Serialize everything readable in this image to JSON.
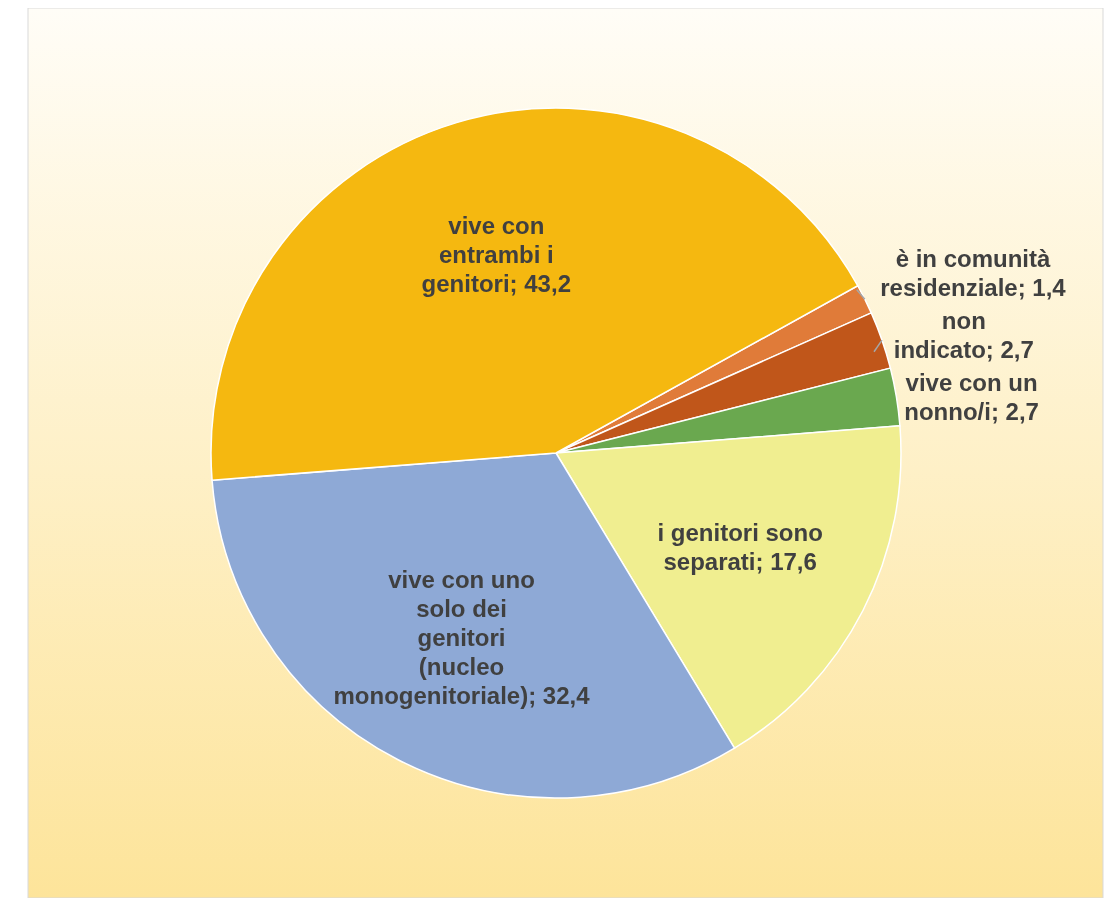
{
  "chart_data": {
    "type": "pie",
    "categories": [
      "è in comunità residenziale",
      "non indicato",
      "vive con un nonno/i",
      "i genitori sono separati",
      "vive con uno solo dei genitori (nucleo monogenitoriale)",
      "vive con entrambi i genitori"
    ],
    "values": [
      1.4,
      2.7,
      2.7,
      17.6,
      32.4,
      43.2
    ],
    "value_labels": [
      "1,4",
      "2,7",
      "2,7",
      "17,6",
      "32,4",
      "43,2"
    ],
    "colors": [
      "#e07b39",
      "#c0561a",
      "#6aa84f",
      "#f0ee90",
      "#8ea9d6",
      "#f5b810"
    ]
  }
}
